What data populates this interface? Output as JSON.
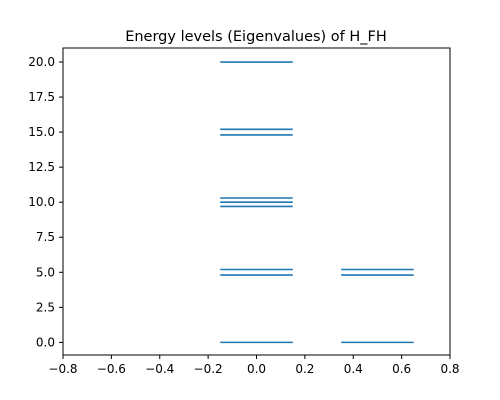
{
  "chart_data": {
    "type": "scatter",
    "title": "Energy levels (Eigenvalues) of H_FH",
    "xlabel": "",
    "ylabel": "",
    "xlim": [
      -0.8,
      0.8
    ],
    "ylim": [
      -0.9,
      21.0
    ],
    "grid": false,
    "level_color": "#1f77b4",
    "x_ticks": [
      "−0.8",
      "−0.6",
      "−0.4",
      "−0.2",
      "0.0",
      "0.2",
      "0.4",
      "0.6",
      "0.8"
    ],
    "x_tick_values": [
      -0.8,
      -0.6,
      -0.4,
      -0.2,
      0.0,
      0.2,
      0.4,
      0.6,
      0.8
    ],
    "y_ticks": [
      "0.0",
      "2.5",
      "5.0",
      "7.5",
      "10.0",
      "12.5",
      "15.0",
      "17.5",
      "20.0"
    ],
    "y_tick_values": [
      0.0,
      2.5,
      5.0,
      7.5,
      10.0,
      12.5,
      15.0,
      17.5,
      20.0
    ],
    "series": [
      {
        "x_range": [
          -0.15,
          0.15
        ],
        "levels": [
          0,
          4.8,
          5.2,
          9.7,
          10.0,
          10.3,
          14.8,
          15.2,
          20
        ]
      },
      {
        "x_range": [
          0.35,
          0.65
        ],
        "levels": [
          0,
          4.8,
          5.2
        ]
      }
    ]
  }
}
